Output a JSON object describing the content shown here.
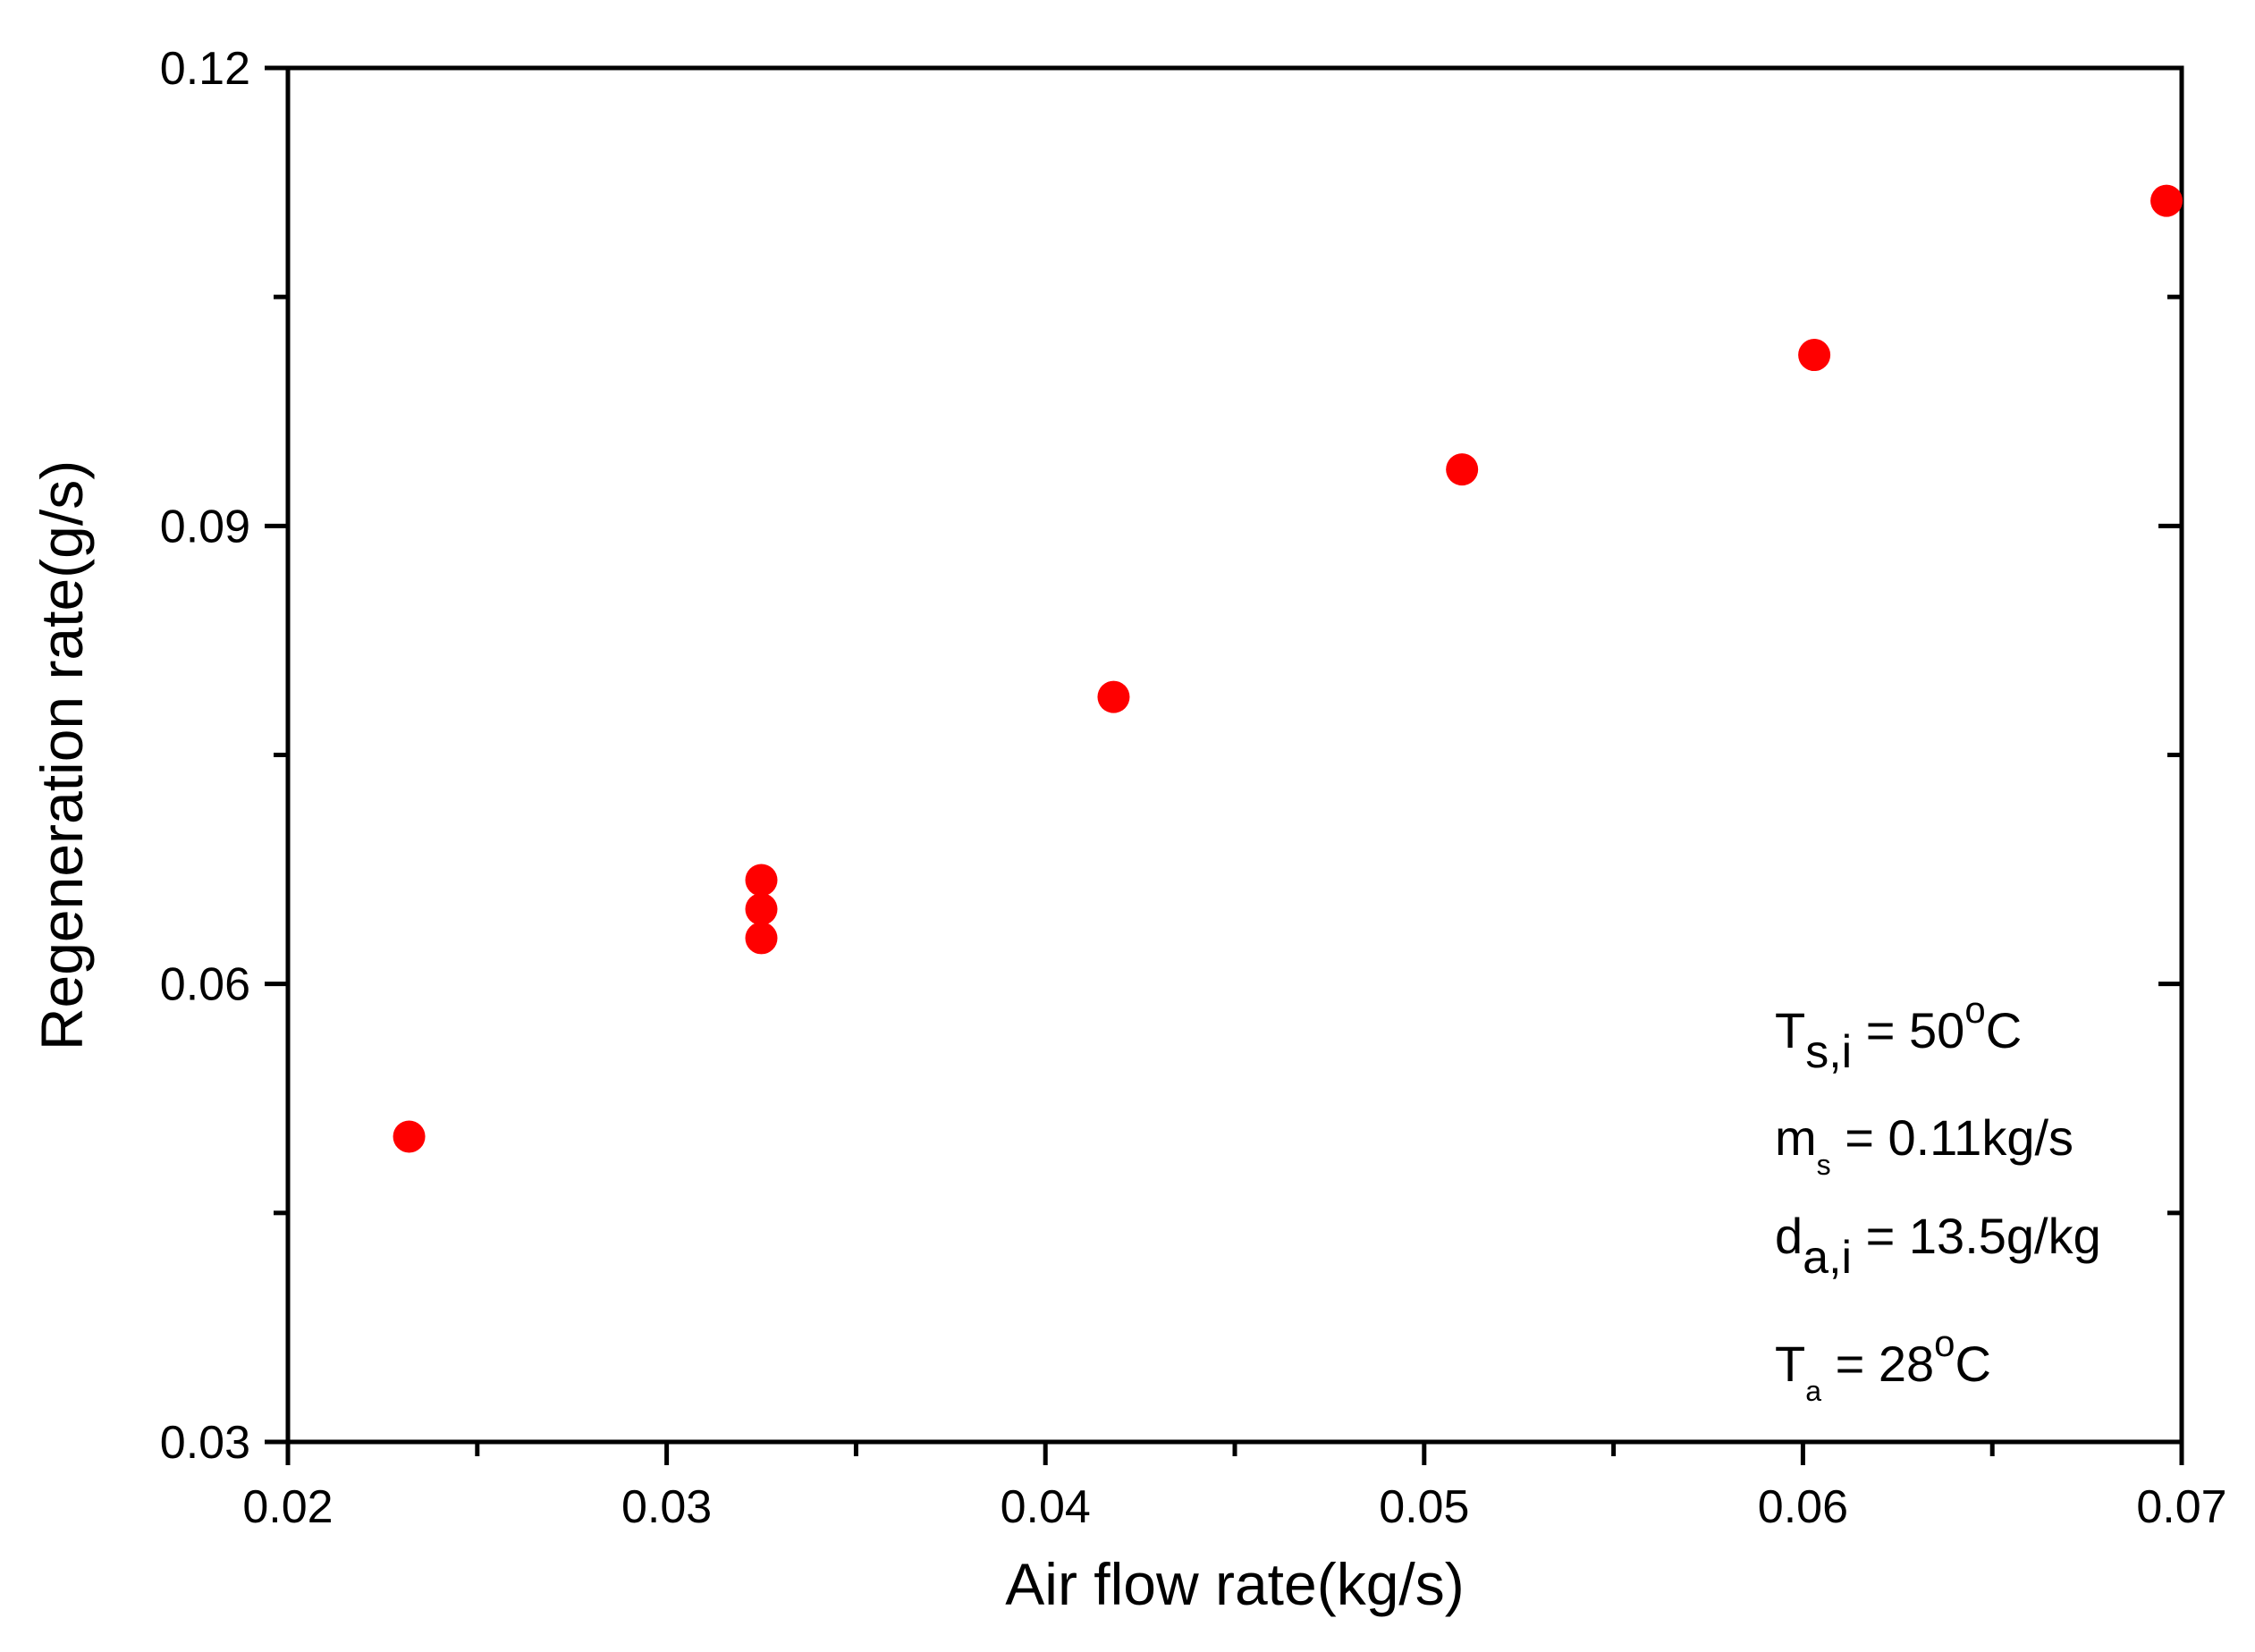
{
  "chart_data": {
    "type": "scatter",
    "title": "",
    "xlabel": "Air flow rate(kg/s)",
    "ylabel": "Regeneration rate(g/s)",
    "xlim": [
      0.02,
      0.07
    ],
    "ylim": [
      0.03,
      0.12
    ],
    "x_ticks": [
      "0.02",
      "0.03",
      "0.04",
      "0.05",
      "0.06",
      "0.07"
    ],
    "y_ticks": [
      "0.03",
      "0.06",
      "0.09",
      "0.12"
    ],
    "grid": false,
    "series": [
      {
        "color": "#ff0000",
        "points": [
          {
            "x": 0.0232,
            "y": 0.05
          },
          {
            "x": 0.0325,
            "y": 0.0668
          },
          {
            "x": 0.0325,
            "y": 0.0649
          },
          {
            "x": 0.0325,
            "y": 0.063
          },
          {
            "x": 0.0418,
            "y": 0.0788
          },
          {
            "x": 0.051,
            "y": 0.0937
          },
          {
            "x": 0.0603,
            "y": 0.1012
          },
          {
            "x": 0.0696,
            "y": 0.1113
          }
        ]
      }
    ],
    "annotations": [
      {
        "main": "T",
        "sub": "s,i",
        "rest": " = 50",
        "sup": "o",
        "tail": "C"
      },
      {
        "main": "m",
        "sub": "s",
        "rest": "  = 0.11kg/s",
        "sup": "",
        "tail": ""
      },
      {
        "main": "d",
        "sub": "a,i",
        "rest": " = 13.5g/kg",
        "sup": "",
        "tail": ""
      },
      {
        "main": "T",
        "sub": "a",
        "rest": "   = 28",
        "sup": "o",
        "tail": "C"
      }
    ]
  }
}
